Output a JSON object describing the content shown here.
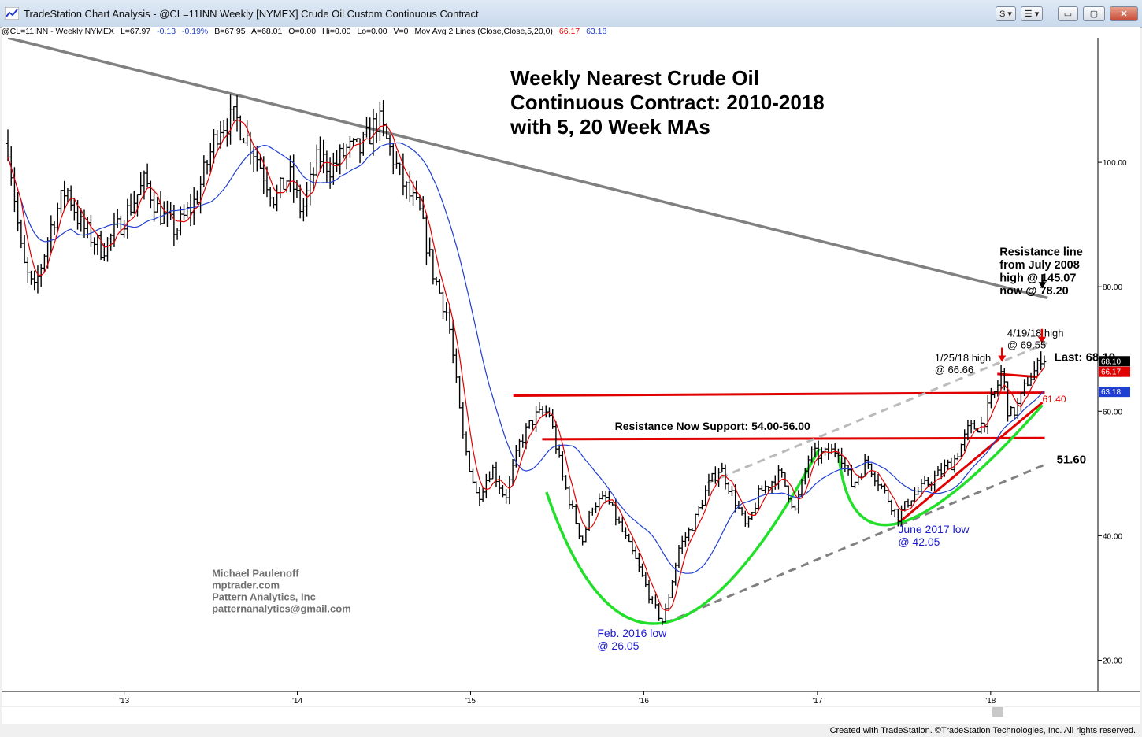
{
  "window": {
    "title": "TradeStation Chart Analysis - @CL=11INN Weekly [NYMEX] Crude Oil Custom Continuous Contract",
    "buttons": {
      "symbol_link": "S",
      "menu": "☰",
      "minimize": "▭",
      "maximize": "▢",
      "close": "✕"
    }
  },
  "infobar": {
    "symbol": "@CL=11INN - Weekly  NYMEX",
    "last": "L=67.97",
    "change": "-0.13",
    "change_pct": "-0.19%",
    "bid": "B=67.95",
    "ask": "A=68.01",
    "open": "O=0.00",
    "high": "Hi=0.00",
    "low": "Lo=0.00",
    "volume": "V=0",
    "study": "Mov Avg 2 Lines (Close,Close,5,20,0)",
    "ma_fast_value": "66.17",
    "ma_slow_value": "63.18",
    "colors": {
      "change": "#1f3fd1",
      "ma_fast": "#e00000",
      "ma_slow": "#1f3fd1"
    }
  },
  "footer": "Created with TradeStation. ©TradeStation Technologies, Inc. All rights reserved.",
  "chart_data": {
    "type": "ohlc",
    "title_lines": [
      "Weekly Nearest Crude Oil",
      "Continuous Contract: 2010-2018",
      "with 5, 20 Week MAs"
    ],
    "x_axis": {
      "ticks": [
        {
          "label": "'13",
          "date": "2013-01-01"
        },
        {
          "label": "'14",
          "date": "2014-01-01"
        },
        {
          "label": "'15",
          "date": "2015-01-01"
        },
        {
          "label": "'16",
          "date": "2016-01-01"
        },
        {
          "label": "'17",
          "date": "2017-01-01"
        },
        {
          "label": "'18",
          "date": "2018-01-01"
        }
      ],
      "range": [
        "2012-05-01",
        "2018-08-15"
      ]
    },
    "y_axis": {
      "ticks": [
        {
          "label": "20.00",
          "value": 20
        },
        {
          "label": "40.00",
          "value": 40
        },
        {
          "label": "60.00",
          "value": 60
        },
        {
          "label": "80.00",
          "value": 80
        },
        {
          "label": "100.00",
          "value": 100
        }
      ],
      "range": [
        15,
        120
      ],
      "side": "right"
    },
    "series": [
      {
        "name": "@CL=11INN Weekly",
        "style": "ohlc-bars",
        "color": "#000000"
      },
      {
        "name": "5 week MA",
        "style": "line",
        "color": "#e00000"
      },
      {
        "name": "20 week MA",
        "style": "line",
        "color": "#1f3fd1"
      }
    ],
    "price_path": [
      [
        "2012-05-01",
        103
      ],
      [
        "2012-06-01",
        84
      ],
      [
        "2012-06-25",
        79
      ],
      [
        "2012-08-01",
        90
      ],
      [
        "2012-09-01",
        96
      ],
      [
        "2012-10-01",
        90
      ],
      [
        "2012-11-15",
        86
      ],
      [
        "2012-12-15",
        89
      ],
      [
        "2013-01-15",
        93
      ],
      [
        "2013-02-15",
        97
      ],
      [
        "2013-03-15",
        92
      ],
      [
        "2013-04-20",
        89
      ],
      [
        "2013-06-01",
        94
      ],
      [
        "2013-07-20",
        106
      ],
      [
        "2013-08-25",
        107
      ],
      [
        "2013-10-01",
        102
      ],
      [
        "2013-11-15",
        94
      ],
      [
        "2013-12-15",
        98
      ],
      [
        "2014-01-10",
        92
      ],
      [
        "2014-02-15",
        101
      ],
      [
        "2014-03-15",
        99
      ],
      [
        "2014-04-15",
        102
      ],
      [
        "2014-05-15",
        102
      ],
      [
        "2014-06-20",
        107
      ],
      [
        "2014-07-15",
        102
      ],
      [
        "2014-08-15",
        96
      ],
      [
        "2014-09-15",
        92
      ],
      [
        "2014-10-15",
        82
      ],
      [
        "2014-11-15",
        75
      ],
      [
        "2014-12-15",
        56
      ],
      [
        "2015-01-15",
        46
      ],
      [
        "2015-02-15",
        51
      ],
      [
        "2015-03-15",
        46
      ],
      [
        "2015-04-15",
        55
      ],
      [
        "2015-05-15",
        59
      ],
      [
        "2015-06-15",
        60
      ],
      [
        "2015-07-15",
        49
      ],
      [
        "2015-08-24",
        39
      ],
      [
        "2015-09-15",
        45
      ],
      [
        "2015-10-15",
        46
      ],
      [
        "2015-11-15",
        41
      ],
      [
        "2015-12-15",
        36
      ],
      [
        "2016-01-20",
        29
      ],
      [
        "2016-02-11",
        26
      ],
      [
        "2016-03-15",
        38
      ],
      [
        "2016-04-15",
        42
      ],
      [
        "2016-05-15",
        48
      ],
      [
        "2016-06-10",
        51
      ],
      [
        "2016-07-15",
        45
      ],
      [
        "2016-08-05",
        41
      ],
      [
        "2016-09-01",
        47
      ],
      [
        "2016-10-15",
        50
      ],
      [
        "2016-11-15",
        44
      ],
      [
        "2016-12-15",
        53
      ],
      [
        "2017-01-15",
        53
      ],
      [
        "2017-02-15",
        54
      ],
      [
        "2017-03-15",
        48
      ],
      [
        "2017-04-15",
        52
      ],
      [
        "2017-05-15",
        48
      ],
      [
        "2017-06-20",
        43
      ],
      [
        "2017-07-15",
        46
      ],
      [
        "2017-08-15",
        48
      ],
      [
        "2017-09-15",
        50
      ],
      [
        "2017-10-15",
        52
      ],
      [
        "2017-11-15",
        57
      ],
      [
        "2017-12-15",
        58
      ],
      [
        "2018-01-15",
        64
      ],
      [
        "2018-01-25",
        66.66
      ],
      [
        "2018-02-09",
        59
      ],
      [
        "2018-03-01",
        61
      ],
      [
        "2018-03-20",
        65
      ],
      [
        "2018-04-10",
        67
      ],
      [
        "2018-04-19",
        69.55
      ],
      [
        "2018-04-27",
        68.1
      ]
    ],
    "trendlines": [
      {
        "name": "resistance-line-from-july-2008",
        "color": "#808080",
        "style": "solid",
        "from": [
          "2012-05-01",
          120
        ],
        "to": [
          "2018-05-01",
          78.2
        ]
      },
      {
        "name": "resistance-now-support-upper",
        "color": "#e00000",
        "style": "solid",
        "from": [
          "2015-04-01",
          62.5
        ],
        "to": [
          "2018-04-25",
          63
        ]
      },
      {
        "name": "resistance-now-support-lower",
        "color": "#e00000",
        "style": "solid",
        "from": [
          "2015-06-01",
          55.5
        ],
        "to": [
          "2018-04-25",
          55.7
        ]
      },
      {
        "name": "rising-support-trendline",
        "color": "#e00000",
        "style": "solid",
        "from": [
          "2017-06-20",
          42
        ],
        "to": [
          "2018-04-20",
          61.4
        ]
      },
      {
        "name": "short-resistance-line",
        "color": "#e00000",
        "style": "solid",
        "from": [
          "2018-01-15",
          66
        ],
        "to": [
          "2018-04-10",
          65.5
        ]
      },
      {
        "name": "dashed-channel-lower",
        "color": "#808080",
        "style": "dashed",
        "from": [
          "2016-02-15",
          26
        ],
        "to": [
          "2018-05-01",
          51.6
        ]
      },
      {
        "name": "dashed-channel-upper",
        "color": "#bbbbbb",
        "style": "dashed",
        "from": [
          "2016-05-15",
          48.5
        ],
        "to": [
          "2018-05-01",
          71
        ]
      }
    ],
    "arcs": [
      {
        "name": "arc-2016-bottom",
        "color": "#22e02a",
        "from": [
          "2015-06-10",
          47
        ],
        "to": [
          "2017-01-05",
          54
        ],
        "bottom": [
          "2016-02-11",
          26
        ]
      },
      {
        "name": "arc-2017-bottom",
        "color": "#22e02a",
        "from": [
          "2017-02-15",
          53
        ],
        "to": [
          "2018-04-20",
          61
        ],
        "bottom": [
          "2017-06-20",
          42
        ]
      }
    ],
    "annotations": [
      {
        "text_lines": [
          "Resistance line",
          "from July 2008",
          "high @ 145.07",
          "now @ 78.20"
        ],
        "anchor": [
          "2018-01-20",
          85
        ],
        "color": "#000000",
        "bold": true
      },
      {
        "text_lines": [
          "4/19/18 high",
          "@ 69.55"
        ],
        "anchor": [
          "2018-02-05",
          72
        ],
        "color": "#000000",
        "bold": false
      },
      {
        "text_lines": [
          "1/25/18 high",
          "@ 66.66"
        ],
        "anchor": [
          "2017-09-05",
          68
        ],
        "color": "#000000",
        "bold": false
      },
      {
        "text_lines": [
          "Last: 68.10"
        ],
        "anchor": [
          "2018-05-15",
          68.1
        ],
        "color": "#000000",
        "bold": true
      },
      {
        "text_lines": [
          "Resistance Now Support: 54.00-56.00"
        ],
        "anchor": [
          "2015-11-01",
          57
        ],
        "color": "#000000",
        "bold": true
      },
      {
        "text_lines": [
          "61.40"
        ],
        "anchor": [
          "2018-04-20",
          61.4
        ],
        "color": "#e00000",
        "bold": false
      },
      {
        "text_lines": [
          "51.60"
        ],
        "anchor": [
          "2018-05-20",
          51.6
        ],
        "color": "#000000",
        "bold": true
      },
      {
        "text_lines": [
          "June 2017 low",
          "@ 42.05"
        ],
        "anchor": [
          "2017-06-20",
          40.4
        ],
        "color": "#1a1ad0",
        "bold": false
      },
      {
        "text_lines": [
          "Feb. 2016 low",
          "@ 26.05"
        ],
        "anchor": [
          "2015-09-25",
          23.7
        ],
        "color": "#1a1ad0",
        "bold": false
      },
      {
        "text_lines": [
          "Michael Paulenoff",
          "mptrader.com",
          "Pattern Analytics, Inc",
          "patternanalytics@gmail.com"
        ],
        "anchor": [
          "2013-07-05",
          33.4
        ],
        "color": "#707070",
        "bold": true
      }
    ],
    "markers": [
      {
        "type": "arrow-down",
        "color": "#000000",
        "at": [
          "2018-04-20",
          80.5
        ]
      },
      {
        "type": "arrow-down",
        "color": "#e00000",
        "at": [
          "2018-01-25",
          68.7
        ]
      },
      {
        "type": "arrow-down",
        "color": "#e00000",
        "at": [
          "2018-04-19",
          71.7
        ]
      }
    ],
    "price_labels": [
      {
        "value": "68.10",
        "price": 68.1,
        "bg": "#000000",
        "fg": "#ffffff"
      },
      {
        "value": "66.17",
        "price": 66.4,
        "bg": "#e00000",
        "fg": "#ffffff"
      },
      {
        "value": "63.18",
        "price": 63.18,
        "bg": "#1f3fd1",
        "fg": "#ffffff"
      }
    ]
  }
}
